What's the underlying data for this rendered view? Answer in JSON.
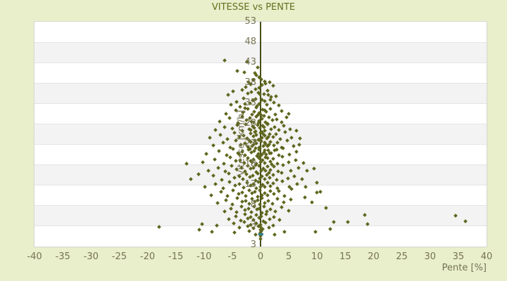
{
  "title": "VITESSE vs PENTE",
  "colors": {
    "background": "#e9eecb",
    "title_text": "#64701e",
    "tick_text": "#757352",
    "axis_line": "#464e15",
    "marker": "#5f661e",
    "band_gray": "#f3f3f3",
    "band_white": "#ffffff",
    "gridline": "#e5e5e5",
    "highlight_marker": "#2e7f96"
  },
  "chart_data": {
    "type": "scatter",
    "title": "VITESSE vs PENTE",
    "xlabel": "Pente [%]",
    "ylabel": "Vitesse [km/h]",
    "xlim": [
      -40,
      40
    ],
    "ylim": [
      -2.2,
      53
    ],
    "x_ticks": [
      -40,
      -35,
      -30,
      -25,
      -20,
      -15,
      -10,
      -5,
      0,
      5,
      10,
      15,
      20,
      25,
      30,
      35,
      40
    ],
    "y_ticks": [
      53,
      48,
      43,
      38,
      33,
      28,
      23,
      18,
      13,
      8,
      3
    ],
    "y_axis_bottom_label": "3",
    "grid": "horizontal-bands",
    "legend": "none",
    "marker": "small-diamond",
    "highlight_point": {
      "x": 0,
      "y": 0.9
    },
    "points": [
      [
        -6.3,
        43.5
      ],
      [
        -2.4,
        43.1
      ],
      [
        -4.1,
        41.0
      ],
      [
        -2.9,
        40.6
      ],
      [
        -1.0,
        40.5
      ],
      [
        -0.5,
        41.8
      ],
      [
        -1.2,
        38.7
      ],
      [
        -0.3,
        39.3
      ],
      [
        0.7,
        38.4
      ],
      [
        -2.1,
        38.1
      ],
      [
        -0.8,
        39.9
      ],
      [
        1.6,
        38.2
      ],
      [
        0.1,
        38.9
      ],
      [
        -2.6,
        37.0
      ],
      [
        -0.9,
        36.4
      ],
      [
        0.3,
        37.4
      ],
      [
        1.2,
        36.1
      ],
      [
        -1.8,
        37.7
      ],
      [
        -0.2,
        36.8
      ],
      [
        2.2,
        37.3
      ],
      [
        -3.3,
        36.2
      ],
      [
        0.9,
        37.9
      ],
      [
        -4.8,
        35.9
      ],
      [
        -1.6,
        35.8
      ],
      [
        -5.7,
        35.1
      ],
      [
        1.4,
        35.0
      ],
      [
        -0.4,
        35.6
      ],
      [
        -2.2,
        35.4
      ],
      [
        0.6,
        35.3
      ],
      [
        -0.1,
        35.2
      ],
      [
        -4.2,
        33.4
      ],
      [
        -2.7,
        32.8
      ],
      [
        -1.4,
        33.7
      ],
      [
        -0.6,
        32.3
      ],
      [
        0.2,
        33.9
      ],
      [
        1.1,
        32.6
      ],
      [
        2.4,
        33.2
      ],
      [
        -1.9,
        33.0
      ],
      [
        -0.2,
        32.9
      ],
      [
        0.8,
        33.5
      ],
      [
        -3.6,
        32.2
      ],
      [
        -5.2,
        32.6
      ],
      [
        3.3,
        32.4
      ],
      [
        -0.9,
        34.0
      ],
      [
        1.7,
        33.8
      ],
      [
        2.7,
        34.8
      ],
      [
        -3.0,
        34.2
      ],
      [
        1.9,
        34.5
      ],
      [
        -6.1,
        30.4
      ],
      [
        -4.4,
        31.2
      ],
      [
        -3.1,
        30.8
      ],
      [
        -2.2,
        31.6
      ],
      [
        -1.5,
        30.2
      ],
      [
        -0.8,
        31.9
      ],
      [
        -0.3,
        30.6
      ],
      [
        0.4,
        31.4
      ],
      [
        1.0,
        30.9
      ],
      [
        1.8,
        31.7
      ],
      [
        2.6,
        30.3
      ],
      [
        3.8,
        31.1
      ],
      [
        -1.1,
        31.0
      ],
      [
        0.1,
        30.1
      ],
      [
        -2.8,
        31.8
      ],
      [
        5.0,
        30.5
      ],
      [
        -0.5,
        30.0
      ],
      [
        0.7,
        31.2
      ],
      [
        -7.2,
        28.6
      ],
      [
        -5.5,
        29.3
      ],
      [
        -4.0,
        28.2
      ],
      [
        -3.2,
        29.7
      ],
      [
        -2.5,
        28.9
      ],
      [
        -1.9,
        29.4
      ],
      [
        -1.3,
        28.3
      ],
      [
        -0.7,
        29.8
      ],
      [
        -0.2,
        28.7
      ],
      [
        0.3,
        29.2
      ],
      [
        0.9,
        28.4
      ],
      [
        1.5,
        29.6
      ],
      [
        2.1,
        28.8
      ],
      [
        2.9,
        29.1
      ],
      [
        3.7,
        28.3
      ],
      [
        4.6,
        29.5
      ],
      [
        -0.4,
        28.1
      ],
      [
        0.6,
        29.9
      ],
      [
        -1.6,
        28.5
      ],
      [
        1.2,
        28.0
      ],
      [
        -8.0,
        26.5
      ],
      [
        -6.3,
        27.2
      ],
      [
        -5.0,
        26.8
      ],
      [
        -4.1,
        27.6
      ],
      [
        -3.3,
        26.2
      ],
      [
        -2.6,
        27.9
      ],
      [
        -2.0,
        26.6
      ],
      [
        -1.4,
        27.3
      ],
      [
        -0.9,
        26.1
      ],
      [
        -0.5,
        27.7
      ],
      [
        -0.1,
        26.9
      ],
      [
        0.4,
        27.4
      ],
      [
        0.8,
        26.3
      ],
      [
        1.3,
        27.8
      ],
      [
        1.9,
        26.7
      ],
      [
        2.5,
        27.1
      ],
      [
        3.2,
        26.4
      ],
      [
        4.1,
        27.5
      ],
      [
        5.2,
        26.6
      ],
      [
        -1.1,
        27.0
      ],
      [
        0.2,
        26.0
      ],
      [
        0.6,
        27.2
      ],
      [
        -1.8,
        26.4
      ],
      [
        6.3,
        26.2
      ],
      [
        -9.0,
        24.6
      ],
      [
        -7.1,
        25.3
      ],
      [
        -5.8,
        24.2
      ],
      [
        -4.6,
        25.8
      ],
      [
        -3.8,
        24.8
      ],
      [
        -3.0,
        25.1
      ],
      [
        -2.4,
        24.3
      ],
      [
        -1.8,
        25.6
      ],
      [
        -1.3,
        24.9
      ],
      [
        -0.8,
        25.2
      ],
      [
        -0.4,
        24.1
      ],
      [
        0.0,
        25.7
      ],
      [
        0.3,
        24.5
      ],
      [
        0.7,
        25.0
      ],
      [
        1.1,
        24.4
      ],
      [
        1.6,
        25.5
      ],
      [
        2.2,
        24.7
      ],
      [
        2.8,
        25.4
      ],
      [
        3.5,
        24.2
      ],
      [
        4.3,
        25.9
      ],
      [
        5.5,
        24.5
      ],
      [
        -1.0,
        25.9
      ],
      [
        -0.2,
        24.0
      ],
      [
        0.5,
        25.4
      ],
      [
        1.4,
        24.8
      ],
      [
        7.0,
        24.3
      ],
      [
        -8.4,
        22.6
      ],
      [
        -6.6,
        23.3
      ],
      [
        -5.3,
        22.2
      ],
      [
        -4.3,
        23.8
      ],
      [
        -3.5,
        22.8
      ],
      [
        -2.8,
        23.1
      ],
      [
        -2.2,
        22.3
      ],
      [
        -1.7,
        23.6
      ],
      [
        -1.2,
        22.9
      ],
      [
        -0.7,
        23.2
      ],
      [
        -0.3,
        22.1
      ],
      [
        0.1,
        23.7
      ],
      [
        0.5,
        22.5
      ],
      [
        0.9,
        23.0
      ],
      [
        1.3,
        22.4
      ],
      [
        1.8,
        23.5
      ],
      [
        2.4,
        22.7
      ],
      [
        3.0,
        23.4
      ],
      [
        3.8,
        22.2
      ],
      [
        4.7,
        23.9
      ],
      [
        5.9,
        22.5
      ],
      [
        -1.0,
        23.9
      ],
      [
        -0.1,
        22.0
      ],
      [
        0.7,
        23.4
      ],
      [
        1.5,
        22.8
      ],
      [
        -2.0,
        23.8
      ],
      [
        6.8,
        22.9
      ],
      [
        -1.5,
        22.4
      ],
      [
        -9.6,
        20.6
      ],
      [
        -7.4,
        21.3
      ],
      [
        -6.0,
        20.2
      ],
      [
        -4.9,
        21.8
      ],
      [
        -4.0,
        20.8
      ],
      [
        -3.3,
        21.1
      ],
      [
        -2.7,
        20.3
      ],
      [
        -2.1,
        21.6
      ],
      [
        -1.6,
        20.9
      ],
      [
        -1.1,
        21.2
      ],
      [
        -0.6,
        20.1
      ],
      [
        -0.2,
        21.7
      ],
      [
        0.2,
        20.5
      ],
      [
        0.6,
        21.0
      ],
      [
        1.0,
        20.4
      ],
      [
        1.4,
        21.5
      ],
      [
        1.9,
        20.7
      ],
      [
        2.5,
        21.4
      ],
      [
        3.2,
        20.2
      ],
      [
        4.0,
        21.9
      ],
      [
        5.1,
        20.5
      ],
      [
        6.4,
        21.1
      ],
      [
        -0.9,
        21.9
      ],
      [
        0.0,
        20.0
      ],
      [
        0.8,
        21.4
      ],
      [
        1.6,
        20.8
      ],
      [
        -1.9,
        21.8
      ],
      [
        -0.4,
        20.6
      ],
      [
        2.9,
        21.7
      ],
      [
        -3.7,
        20.5
      ],
      [
        -10.2,
        18.5
      ],
      [
        -8.1,
        19.2
      ],
      [
        -6.5,
        18.2
      ],
      [
        -5.4,
        19.7
      ],
      [
        -4.4,
        18.8
      ],
      [
        -3.6,
        19.1
      ],
      [
        -2.9,
        18.3
      ],
      [
        -2.3,
        19.6
      ],
      [
        -1.8,
        18.9
      ],
      [
        -1.3,
        19.2
      ],
      [
        -0.8,
        18.1
      ],
      [
        -0.4,
        19.7
      ],
      [
        0.0,
        18.5
      ],
      [
        0.4,
        19.0
      ],
      [
        0.8,
        18.4
      ],
      [
        1.2,
        19.5
      ],
      [
        1.7,
        18.7
      ],
      [
        2.3,
        19.4
      ],
      [
        3.0,
        18.2
      ],
      [
        3.9,
        19.9
      ],
      [
        5.0,
        18.5
      ],
      [
        6.2,
        19.1
      ],
      [
        7.6,
        18.4
      ],
      [
        -13.1,
        18.2
      ],
      [
        0.9,
        19.8
      ],
      [
        -1.5,
        18.6
      ],
      [
        2.0,
        18.0
      ],
      [
        -0.1,
        19.3
      ],
      [
        -9.2,
        16.5
      ],
      [
        -7.5,
        17.2
      ],
      [
        -6.2,
        16.2
      ],
      [
        -5.1,
        17.7
      ],
      [
        -4.2,
        16.8
      ],
      [
        -3.4,
        17.1
      ],
      [
        -2.8,
        16.3
      ],
      [
        -2.2,
        17.6
      ],
      [
        -1.7,
        16.9
      ],
      [
        -1.2,
        17.2
      ],
      [
        -0.7,
        16.1
      ],
      [
        -0.3,
        17.7
      ],
      [
        0.1,
        16.5
      ],
      [
        0.5,
        17.0
      ],
      [
        0.9,
        16.4
      ],
      [
        1.3,
        17.5
      ],
      [
        1.8,
        16.7
      ],
      [
        2.4,
        17.4
      ],
      [
        3.1,
        16.2
      ],
      [
        4.0,
        17.9
      ],
      [
        5.3,
        16.5
      ],
      [
        6.7,
        17.1
      ],
      [
        8.2,
        16.4
      ],
      [
        9.5,
        17.0
      ],
      [
        -0.9,
        17.9
      ],
      [
        1.5,
        16.0
      ],
      [
        -11.0,
        15.6
      ],
      [
        -12.3,
        14.4
      ],
      [
        -8.3,
        15.2
      ],
      [
        -6.9,
        14.2
      ],
      [
        -5.6,
        15.8
      ],
      [
        -4.6,
        14.8
      ],
      [
        -3.8,
        15.1
      ],
      [
        -3.1,
        14.3
      ],
      [
        -2.5,
        15.6
      ],
      [
        -1.9,
        14.9
      ],
      [
        -1.4,
        15.2
      ],
      [
        -0.9,
        14.1
      ],
      [
        -0.5,
        15.7
      ],
      [
        -0.1,
        14.5
      ],
      [
        0.3,
        15.0
      ],
      [
        0.7,
        14.4
      ],
      [
        1.1,
        15.5
      ],
      [
        1.6,
        14.7
      ],
      [
        2.2,
        15.4
      ],
      [
        2.9,
        14.2
      ],
      [
        3.7,
        15.9
      ],
      [
        4.8,
        14.5
      ],
      [
        6.0,
        15.1
      ],
      [
        7.3,
        14.4
      ],
      [
        -9.8,
        12.5
      ],
      [
        -8.0,
        13.2
      ],
      [
        -6.6,
        12.2
      ],
      [
        -5.5,
        13.7
      ],
      [
        -4.5,
        12.8
      ],
      [
        -3.7,
        13.1
      ],
      [
        -3.0,
        12.3
      ],
      [
        -2.4,
        13.6
      ],
      [
        -1.8,
        12.9
      ],
      [
        -1.3,
        13.2
      ],
      [
        -0.8,
        12.1
      ],
      [
        -0.4,
        13.7
      ],
      [
        0.0,
        12.5
      ],
      [
        0.4,
        13.0
      ],
      [
        0.8,
        12.4
      ],
      [
        1.2,
        13.5
      ],
      [
        1.7,
        12.7
      ],
      [
        2.3,
        13.4
      ],
      [
        3.0,
        12.2
      ],
      [
        3.9,
        13.9
      ],
      [
        5.1,
        12.5
      ],
      [
        6.5,
        13.1
      ],
      [
        8.0,
        12.4
      ],
      [
        10.0,
        13.6
      ],
      [
        -8.7,
        10.5
      ],
      [
        -7.0,
        11.2
      ],
      [
        -5.8,
        10.2
      ],
      [
        -4.8,
        11.7
      ],
      [
        -3.9,
        10.8
      ],
      [
        -3.2,
        11.1
      ],
      [
        -2.6,
        10.3
      ],
      [
        -2.0,
        11.6
      ],
      [
        -1.5,
        10.9
      ],
      [
        -1.0,
        11.2
      ],
      [
        -0.5,
        10.1
      ],
      [
        -0.1,
        11.7
      ],
      [
        0.3,
        10.5
      ],
      [
        0.7,
        11.0
      ],
      [
        1.2,
        10.4
      ],
      [
        1.7,
        11.5
      ],
      [
        2.4,
        10.7
      ],
      [
        3.2,
        11.4
      ],
      [
        4.2,
        10.2
      ],
      [
        5.5,
        11.9
      ],
      [
        10.0,
        11.1
      ],
      [
        10.6,
        11.3
      ],
      [
        -7.6,
        8.5
      ],
      [
        -6.1,
        9.2
      ],
      [
        -5.0,
        8.2
      ],
      [
        -4.1,
        9.7
      ],
      [
        -3.3,
        8.8
      ],
      [
        -2.6,
        9.1
      ],
      [
        -2.0,
        8.3
      ],
      [
        -1.5,
        9.6
      ],
      [
        -1.0,
        8.9
      ],
      [
        -0.5,
        9.2
      ],
      [
        -0.1,
        8.1
      ],
      [
        0.3,
        9.7
      ],
      [
        0.8,
        8.5
      ],
      [
        1.4,
        9.0
      ],
      [
        2.1,
        8.4
      ],
      [
        3.0,
        9.5
      ],
      [
        4.1,
        8.7
      ],
      [
        5.4,
        9.4
      ],
      [
        7.8,
        9.9
      ],
      [
        9.1,
        8.7
      ],
      [
        -6.4,
        6.5
      ],
      [
        -5.2,
        7.2
      ],
      [
        -4.2,
        6.2
      ],
      [
        -3.4,
        7.7
      ],
      [
        -2.7,
        6.8
      ],
      [
        -2.1,
        7.1
      ],
      [
        -1.6,
        6.3
      ],
      [
        -1.1,
        7.6
      ],
      [
        -0.6,
        6.9
      ],
      [
        -0.2,
        7.2
      ],
      [
        0.2,
        6.1
      ],
      [
        0.6,
        7.7
      ],
      [
        1.1,
        6.5
      ],
      [
        1.8,
        7.0
      ],
      [
        2.6,
        6.4
      ],
      [
        3.7,
        7.5
      ],
      [
        5.0,
        6.7
      ],
      [
        11.6,
        7.3
      ],
      [
        -5.6,
        4.5
      ],
      [
        -4.4,
        5.2
      ],
      [
        -3.5,
        4.2
      ],
      [
        -2.8,
        5.7
      ],
      [
        -2.2,
        4.8
      ],
      [
        -1.7,
        5.1
      ],
      [
        -1.2,
        4.3
      ],
      [
        -0.7,
        5.6
      ],
      [
        -0.3,
        4.9
      ],
      [
        0.1,
        5.2
      ],
      [
        0.5,
        4.1
      ],
      [
        1.0,
        5.7
      ],
      [
        1.6,
        4.5
      ],
      [
        2.4,
        5.0
      ],
      [
        3.4,
        4.4
      ],
      [
        18.4,
        5.6
      ],
      [
        34.5,
        5.4
      ],
      [
        36.3,
        4.1
      ],
      [
        -18.0,
        2.7
      ],
      [
        -10.4,
        3.4
      ],
      [
        -7.7,
        3.0
      ],
      [
        -4.7,
        3.6
      ],
      [
        -3.7,
        2.4
      ],
      [
        -2.9,
        3.8
      ],
      [
        -2.3,
        2.8
      ],
      [
        -1.8,
        3.1
      ],
      [
        -1.3,
        2.3
      ],
      [
        -0.8,
        3.6
      ],
      [
        -0.4,
        2.9
      ],
      [
        0.0,
        3.2
      ],
      [
        0.4,
        2.1
      ],
      [
        0.9,
        3.7
      ],
      [
        1.5,
        2.5
      ],
      [
        2.3,
        3.0
      ],
      [
        13.0,
        3.9
      ],
      [
        15.5,
        3.9
      ],
      [
        19.0,
        3.3
      ],
      [
        12.3,
        2.1
      ],
      [
        -10.8,
        1.9
      ],
      [
        -8.6,
        1.5
      ],
      [
        -4.6,
        1.2
      ],
      [
        -2.0,
        1.6
      ],
      [
        -0.9,
        0.7
      ],
      [
        2.5,
        0.8
      ],
      [
        4.2,
        1.5
      ],
      [
        9.7,
        1.5
      ],
      [
        0.1,
        1.6
      ],
      [
        -0.1,
        0.9
      ],
      [
        0.0,
        2.6
      ],
      [
        0.0,
        1.9
      ],
      [
        0.0,
        1.2
      ],
      [
        0.0,
        0.5
      ],
      [
        0.0,
        -0.2
      ]
    ]
  }
}
